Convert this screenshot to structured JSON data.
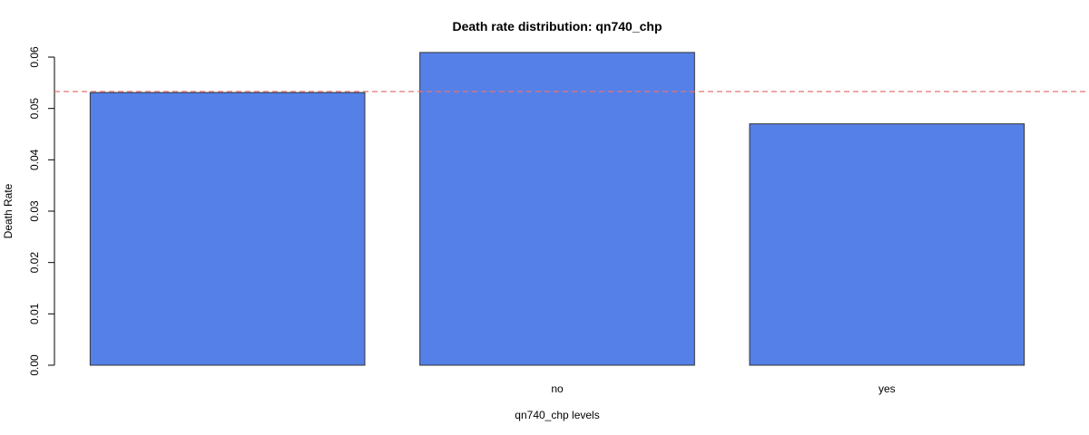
{
  "chart_data": {
    "type": "bar",
    "title": "Death rate distribution: qn740_chp",
    "xlabel": "qn740_chp levels",
    "ylabel": "Death Rate",
    "categories": [
      "",
      "no",
      "yes"
    ],
    "values": [
      0.0531,
      0.0609,
      0.047
    ],
    "ylim": [
      0,
      0.06
    ],
    "yticks": [
      0,
      0.01,
      0.02,
      0.03,
      0.04,
      0.05,
      0.06
    ],
    "ytick_labels": [
      "0.00",
      "0.01",
      "0.02",
      "0.03",
      "0.04",
      "0.05",
      "0.06"
    ],
    "reference_line": 0.0533,
    "grid": false,
    "bar_color": "#5580e8",
    "bar_border_color": "#333333",
    "reference_line_color": "#e57373"
  }
}
